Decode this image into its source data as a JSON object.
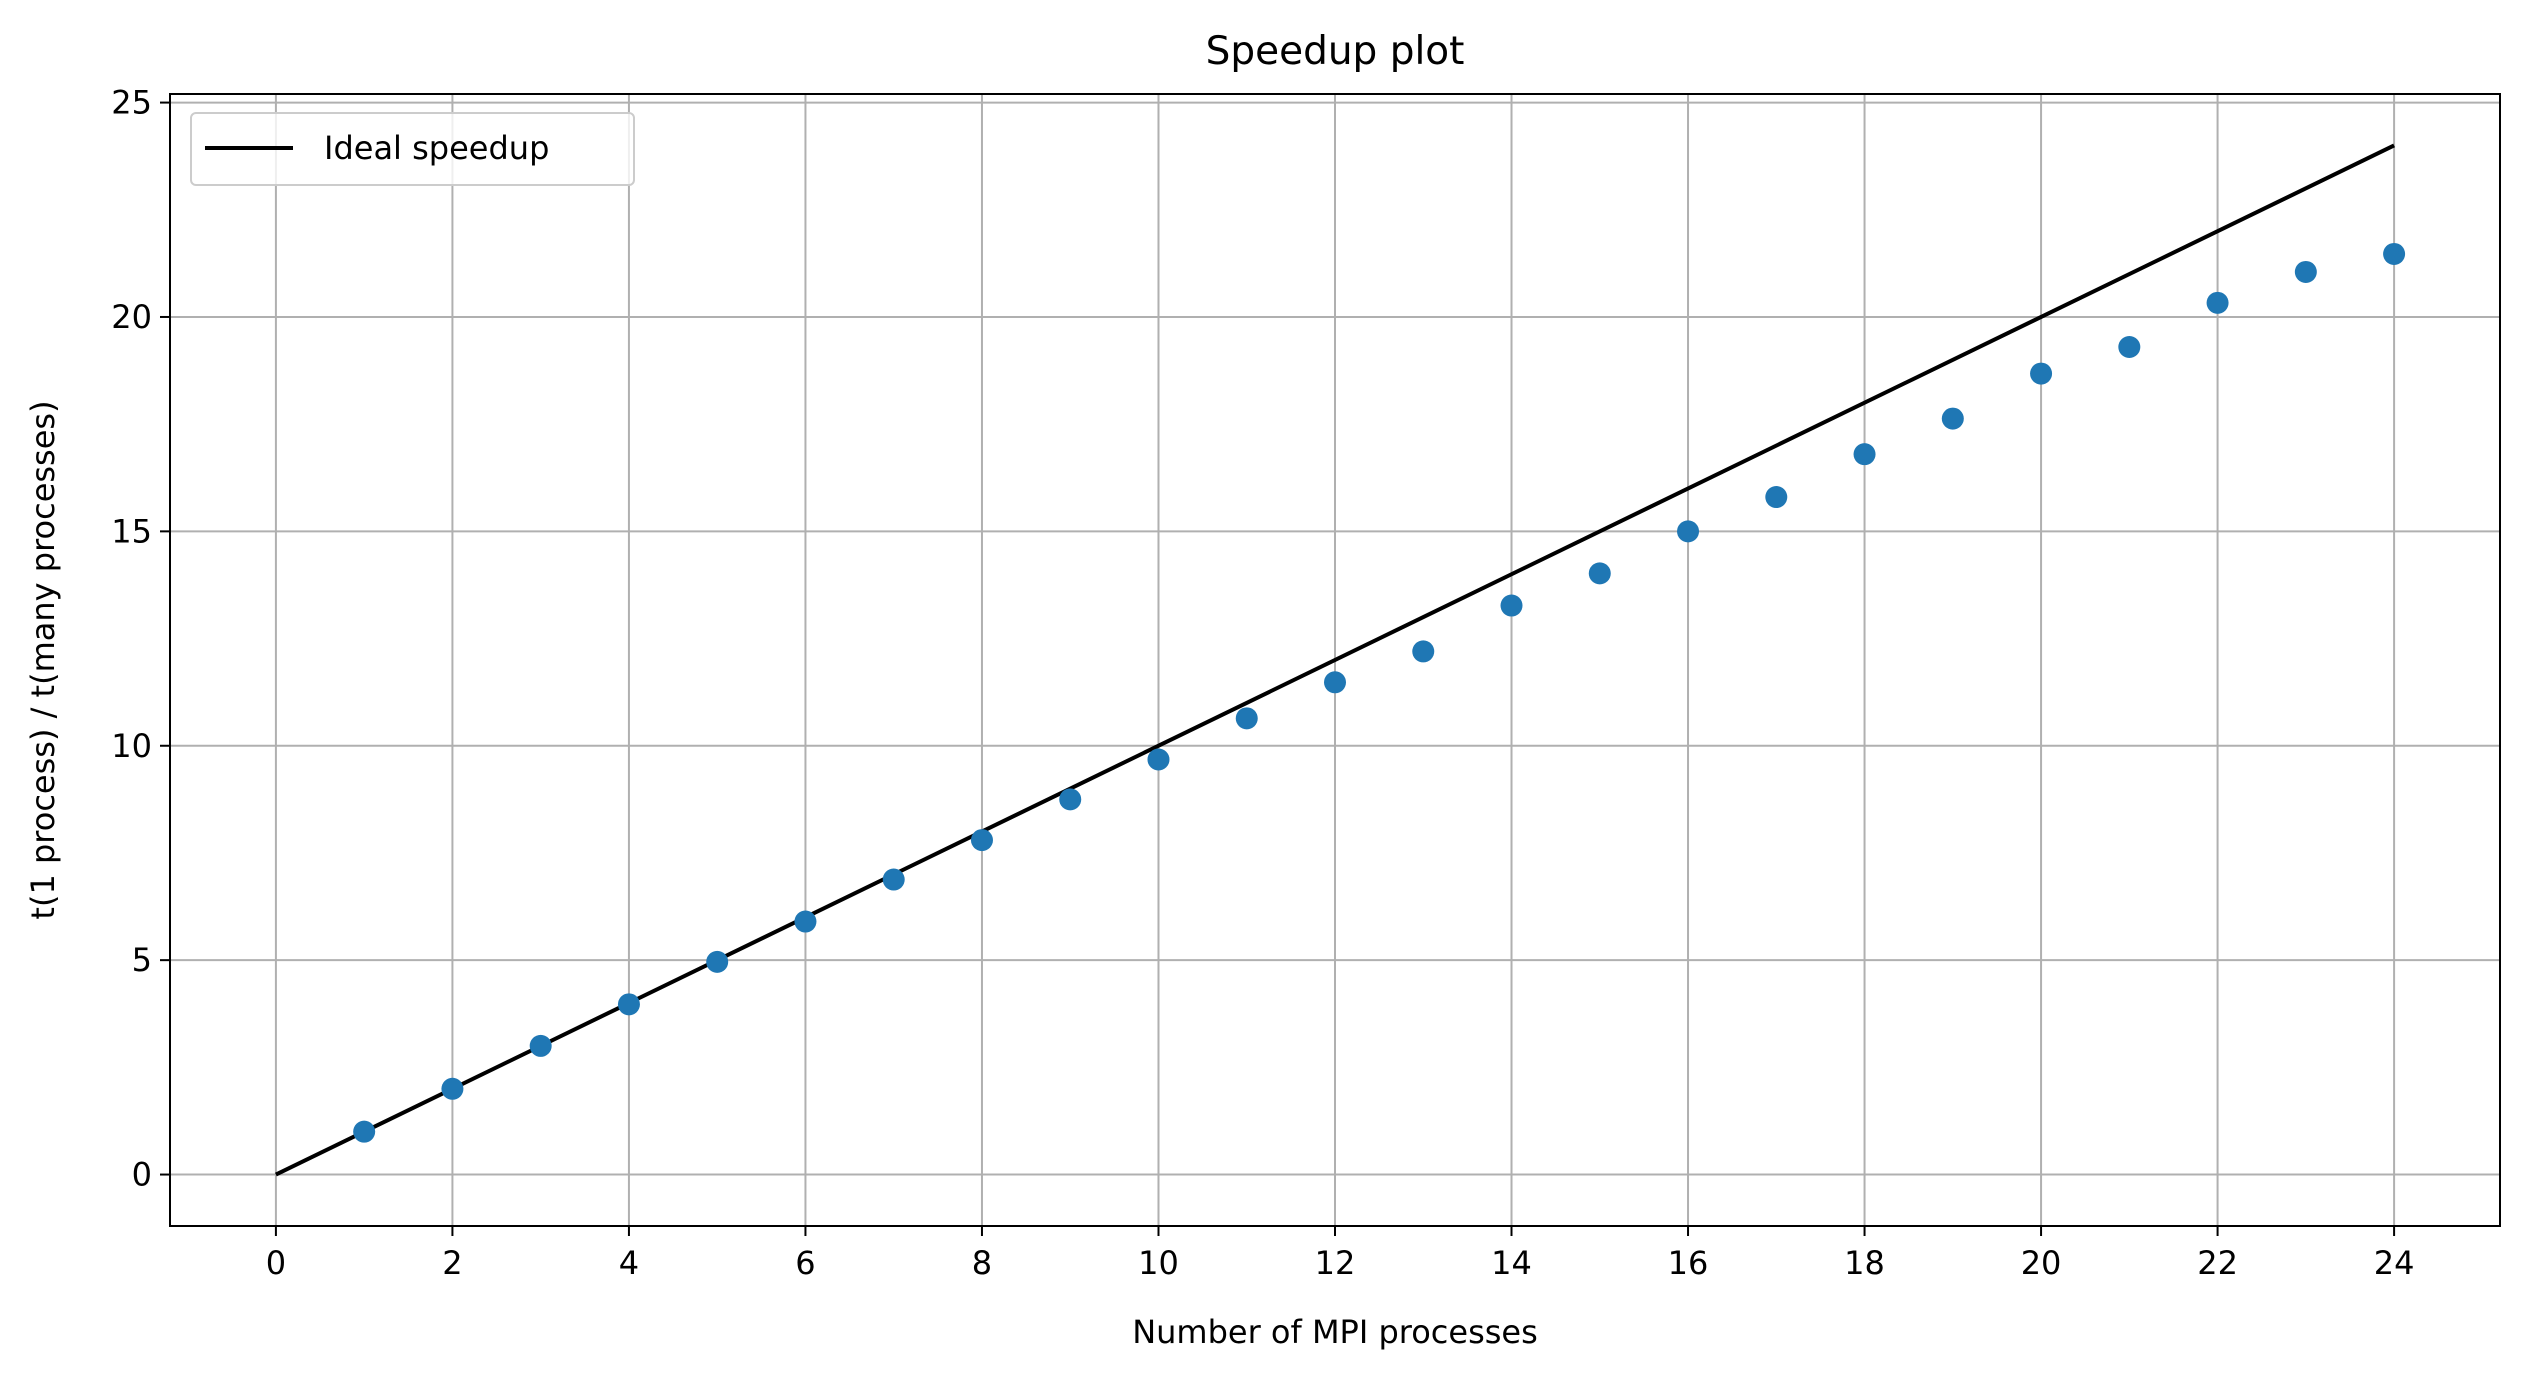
{
  "chart_data": {
    "type": "scatter",
    "title": "Speedup plot",
    "xlabel": "Number of MPI processes",
    "ylabel": "t(1 process) / t(many processes)",
    "xlim": [
      -1.2,
      25.2
    ],
    "ylim": [
      -1.2,
      25.2
    ],
    "xticks": [
      0,
      2,
      4,
      6,
      8,
      10,
      12,
      14,
      16,
      18,
      20,
      22,
      24
    ],
    "yticks": [
      0,
      5,
      10,
      15,
      20,
      25
    ],
    "grid": true,
    "legend_position": "top-left",
    "series": [
      {
        "name": "Ideal speedup",
        "kind": "line",
        "color": "#000000",
        "x": [
          0,
          24
        ],
        "y": [
          0,
          24
        ]
      },
      {
        "kind": "scatter",
        "color": "#1f77b4",
        "x": [
          1,
          2,
          3,
          4,
          5,
          6,
          7,
          8,
          9,
          10,
          11,
          12,
          13,
          14,
          15,
          16,
          17,
          18,
          19,
          20,
          21,
          22,
          23,
          24
        ],
        "y": [
          1.0,
          2.0,
          3.0,
          3.97,
          4.96,
          5.9,
          6.88,
          7.8,
          8.75,
          9.68,
          10.64,
          11.48,
          12.2,
          13.27,
          14.02,
          15.0,
          15.8,
          16.8,
          17.63,
          18.68,
          19.3,
          20.33,
          21.05,
          21.47
        ]
      }
    ]
  }
}
